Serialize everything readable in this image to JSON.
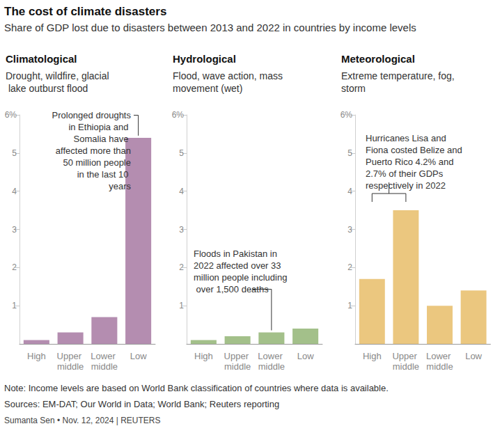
{
  "title": "The cost of climate disasters",
  "subtitle": "Share of GDP lost due to disasters between 2013 and 2022 in countries by income levels",
  "note": "Note: Income levels are based on World Bank classification of countries where data is available.",
  "sources": "Sources: EM-DAT; Our World in Data; World Bank; Reuters reporting",
  "credit": "Sumanta Sen • Nov. 12, 2024 | REUTERS",
  "chart_data": [
    {
      "type": "bar",
      "title": "Climatological",
      "subtitle": "Drought, wildfire, glacial lake outburst flood",
      "categories": [
        "High",
        "Upper middle",
        "Lower middle",
        "Low"
      ],
      "values": [
        0.1,
        0.3,
        0.7,
        5.4
      ],
      "color": "#b48db0",
      "ylim": [
        0,
        6
      ],
      "yticks": [
        1,
        2,
        3,
        4,
        5,
        {
          "value": 6,
          "label": "6%"
        }
      ],
      "grid": false,
      "annotations": [
        {
          "text": "Prolonged droughts in Ethiopia and Somalia have affected more than 50 million people in the last 10 years",
          "targets": [
            "Low"
          ]
        }
      ]
    },
    {
      "type": "bar",
      "title": "Hydrological",
      "subtitle": "Flood, wave action, mass movement (wet)",
      "categories": [
        "High",
        "Upper middle",
        "Lower middle",
        "Low"
      ],
      "values": [
        0.1,
        0.2,
        0.3,
        0.4
      ],
      "color": "#a3c08a",
      "ylim": [
        0,
        6
      ],
      "yticks": [
        1,
        2,
        3,
        4,
        5,
        {
          "value": 6,
          "label": "6%"
        }
      ],
      "grid": false,
      "annotations": [
        {
          "text": "Floods in Pakistan in 2022 affected over 33 million people including over 1,500 deaths",
          "targets": [
            "Lower middle"
          ]
        }
      ]
    },
    {
      "type": "bar",
      "title": "Meteorological",
      "subtitle": "Extreme temperature, fog, storm",
      "categories": [
        "High",
        "Upper middle",
        "Lower middle",
        "Low"
      ],
      "values": [
        1.7,
        3.5,
        1.0,
        1.4
      ],
      "color": "#ebc77f",
      "ylim": [
        0,
        6
      ],
      "yticks": [
        1,
        2,
        3,
        4,
        5,
        {
          "value": 6,
          "label": "6%"
        }
      ],
      "grid": false,
      "annotations": [
        {
          "text": "Hurricanes Lisa and Fiona costed Belize and Puerto Rico 4.2% and 2.7% of their GDPs respectively in 2022",
          "targets": [
            "High",
            "Upper middle"
          ]
        }
      ]
    }
  ]
}
